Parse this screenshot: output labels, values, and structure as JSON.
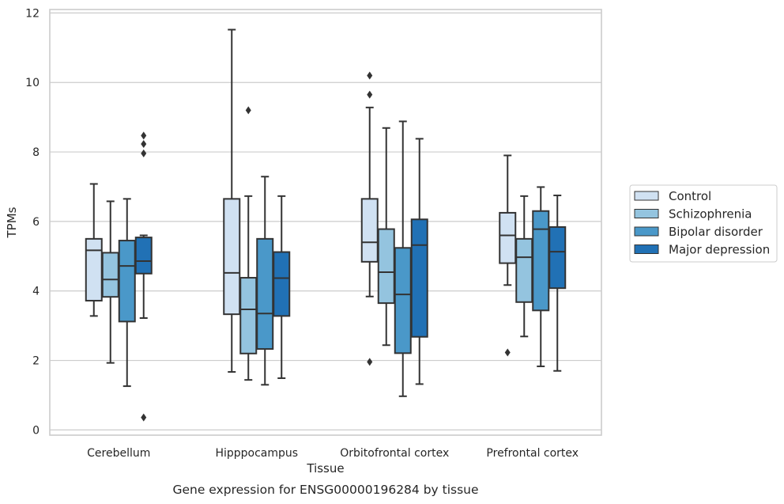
{
  "chart_data": {
    "type": "boxplot",
    "xlabel": "Tissue",
    "ylabel": "TPMs",
    "caption": "Gene expression for ENSG00000196284 by tissue",
    "ylim": [
      -0.15,
      12.1
    ],
    "yticks": [
      0,
      2,
      4,
      6,
      8,
      10,
      12
    ],
    "grid": true,
    "legend_position": "right",
    "categories": [
      "Cerebellum",
      "Hipppocampus",
      "Orbitofrontal cortex",
      "Prefrontal cortex"
    ],
    "series": [
      {
        "name": "Control",
        "color": "#d0e1f2",
        "boxes": [
          {
            "whislo": 3.28,
            "q1": 3.72,
            "med": 5.17,
            "q3": 5.5,
            "whishi": 7.08,
            "fliers": []
          },
          {
            "whislo": 1.67,
            "q1": 3.33,
            "med": 4.52,
            "q3": 6.65,
            "whishi": 11.52,
            "fliers": []
          },
          {
            "whislo": 3.84,
            "q1": 4.84,
            "med": 5.4,
            "q3": 6.65,
            "whishi": 9.28,
            "fliers": [
              10.2,
              9.65,
              1.96
            ]
          },
          {
            "whislo": 4.17,
            "q1": 4.8,
            "med": 5.6,
            "q3": 6.25,
            "whishi": 7.9,
            "fliers": [
              2.23
            ]
          }
        ]
      },
      {
        "name": "Schizophrenia",
        "color": "#94c4df",
        "boxes": [
          {
            "whislo": 1.93,
            "q1": 3.83,
            "med": 4.33,
            "q3": 5.1,
            "whishi": 6.58,
            "fliers": []
          },
          {
            "whislo": 1.44,
            "q1": 2.2,
            "med": 3.47,
            "q3": 4.38,
            "whishi": 6.73,
            "fliers": [
              9.2
            ]
          },
          {
            "whislo": 2.44,
            "q1": 3.65,
            "med": 4.54,
            "q3": 5.78,
            "whishi": 8.69,
            "fliers": []
          },
          {
            "whislo": 2.69,
            "q1": 3.68,
            "med": 4.97,
            "q3": 5.5,
            "whishi": 6.73,
            "fliers": []
          }
        ]
      },
      {
        "name": "Bipolar disorder",
        "color": "#4a98c9",
        "boxes": [
          {
            "whislo": 1.26,
            "q1": 3.12,
            "med": 4.72,
            "q3": 5.45,
            "whishi": 6.65,
            "fliers": []
          },
          {
            "whislo": 1.3,
            "q1": 2.33,
            "med": 3.35,
            "q3": 5.5,
            "whishi": 7.29,
            "fliers": []
          },
          {
            "whislo": 0.97,
            "q1": 2.21,
            "med": 3.9,
            "q3": 5.24,
            "whishi": 8.88,
            "fliers": []
          },
          {
            "whislo": 1.83,
            "q1": 3.44,
            "med": 5.78,
            "q3": 6.3,
            "whishi": 6.99,
            "fliers": []
          }
        ]
      },
      {
        "name": "Major depression",
        "color": "#2171b5",
        "boxes": [
          {
            "whislo": 3.22,
            "q1": 4.5,
            "med": 4.86,
            "q3": 5.54,
            "whishi": 5.6,
            "fliers": [
              8.47,
              8.23,
              7.96,
              0.36
            ]
          },
          {
            "whislo": 1.49,
            "q1": 3.28,
            "med": 4.37,
            "q3": 5.12,
            "whishi": 6.73,
            "fliers": []
          },
          {
            "whislo": 1.32,
            "q1": 2.68,
            "med": 5.32,
            "q3": 6.06,
            "whishi": 8.38,
            "fliers": []
          },
          {
            "whislo": 1.7,
            "q1": 4.08,
            "med": 5.13,
            "q3": 5.84,
            "whishi": 6.75,
            "fliers": []
          }
        ]
      }
    ]
  }
}
